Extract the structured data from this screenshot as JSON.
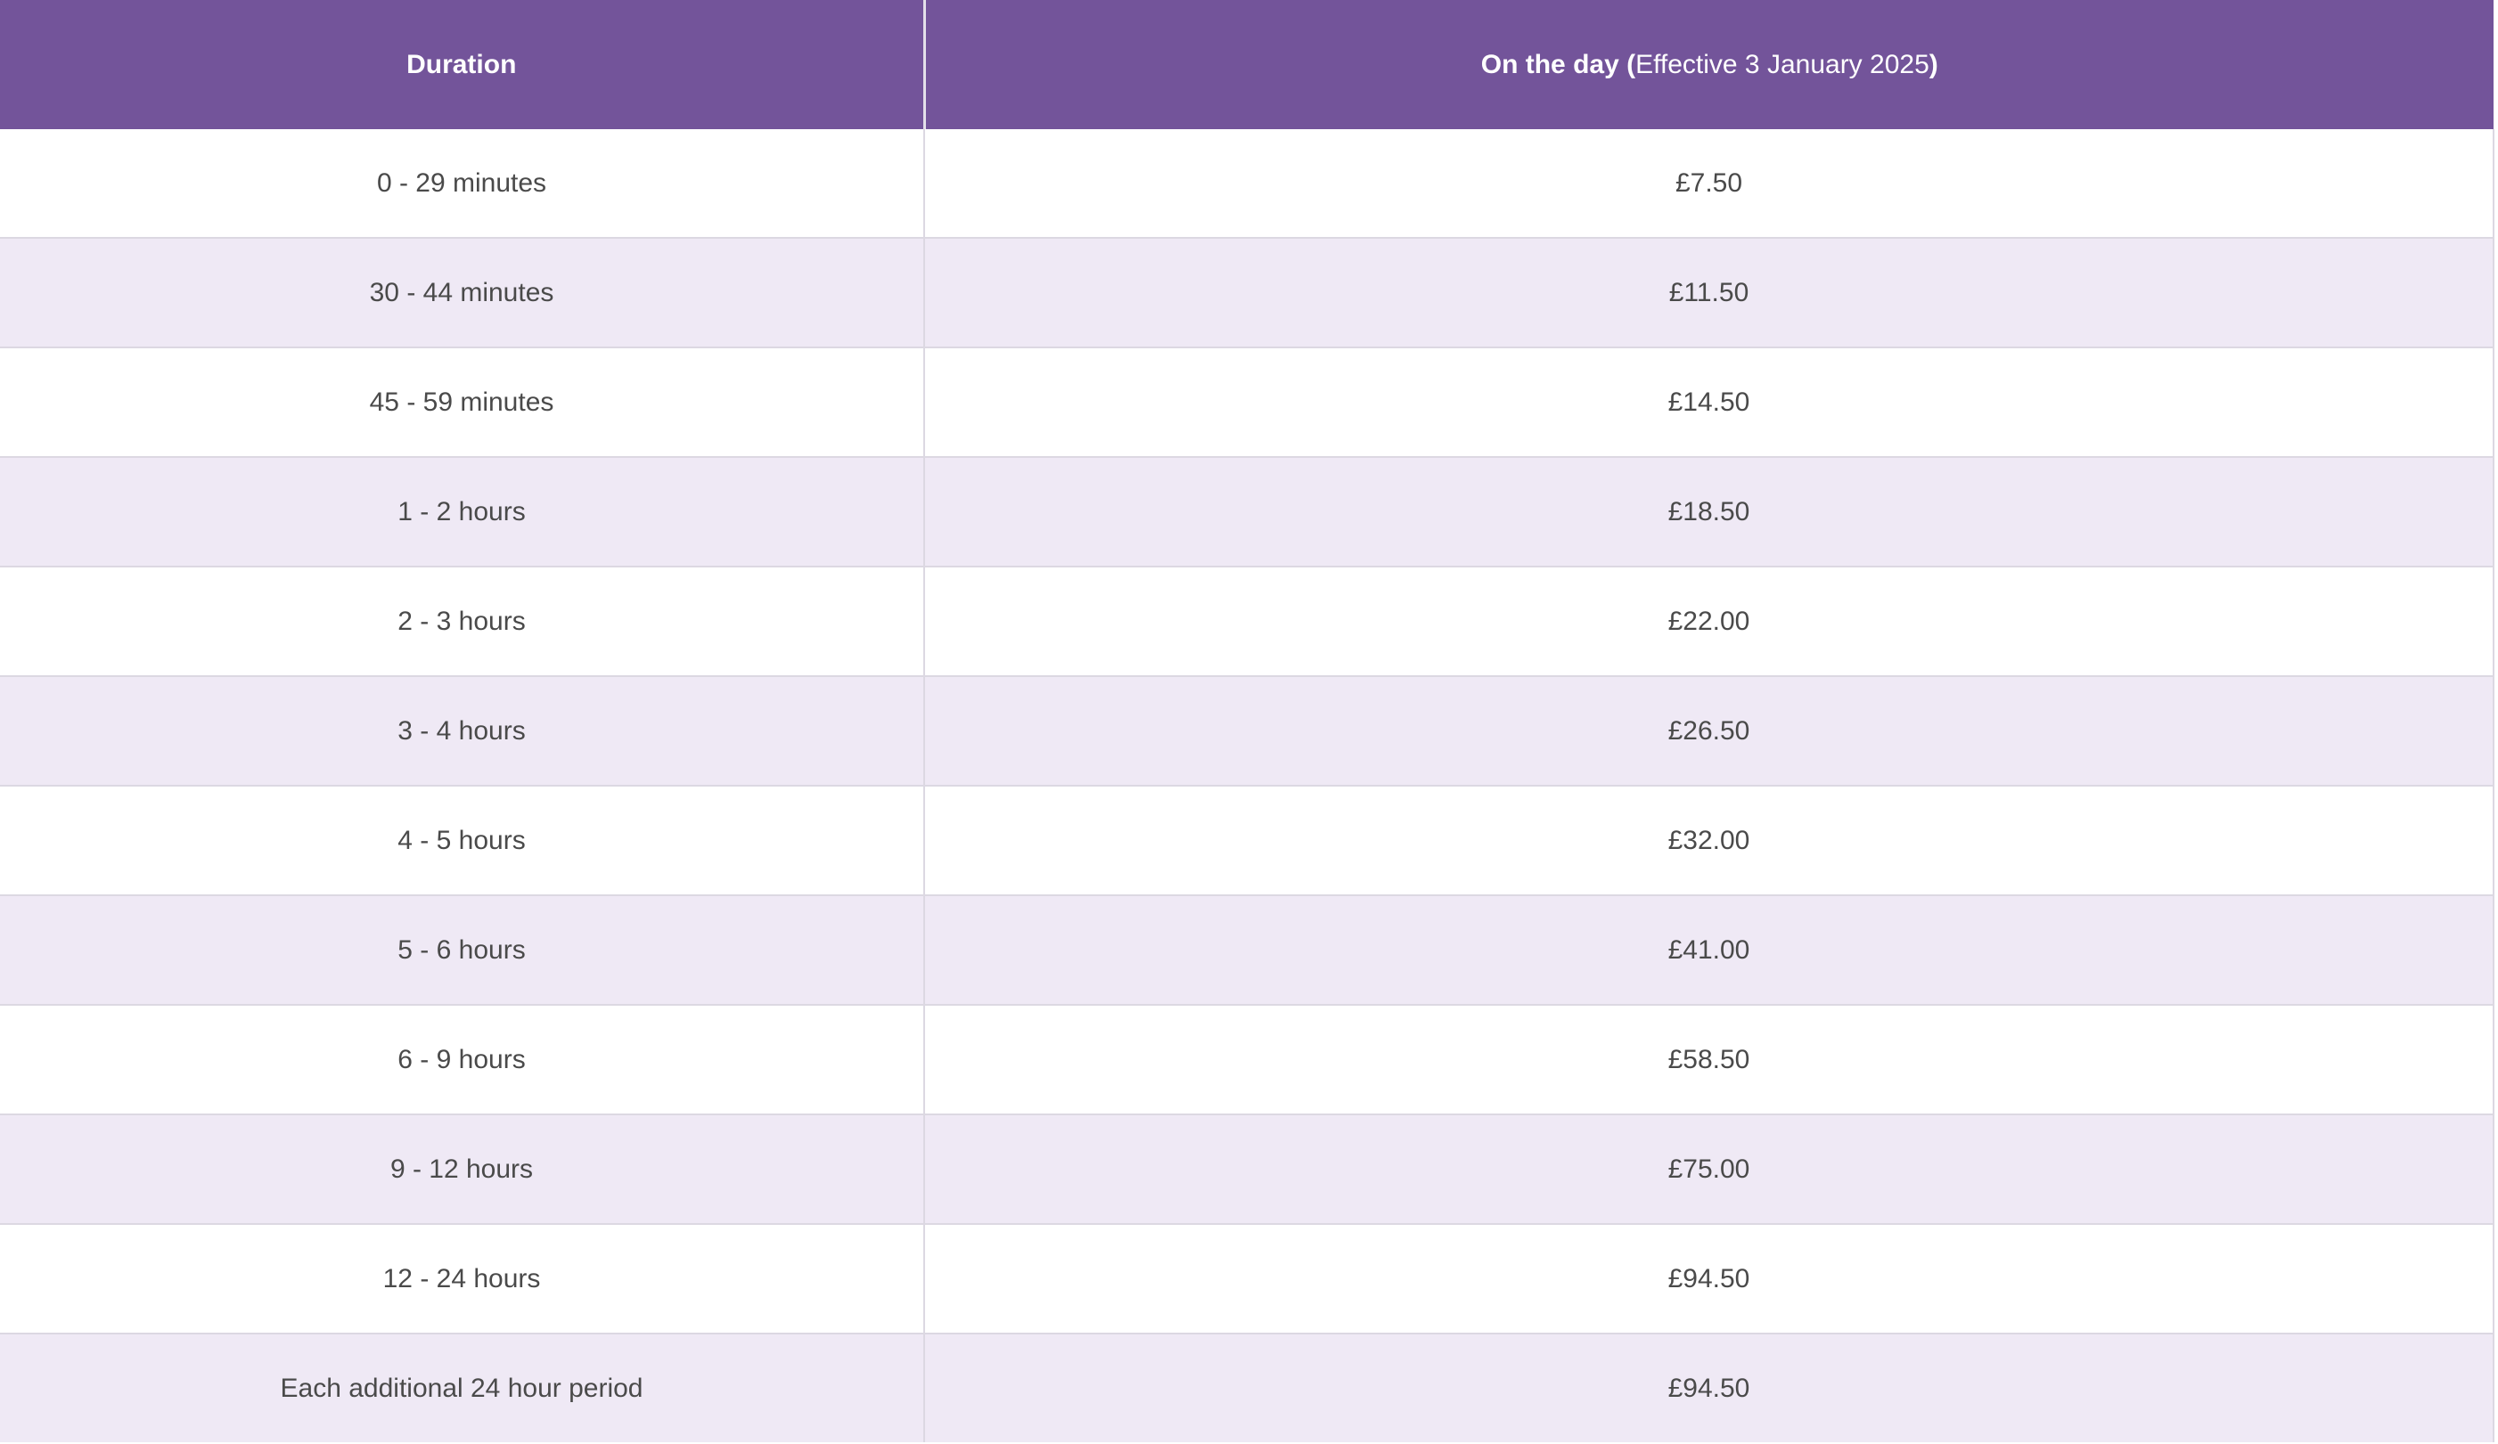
{
  "table": {
    "header": {
      "duration": "Duration",
      "price_bold_prefix": "On the day (",
      "price_note": "Effective 3 January 2025",
      "price_bold_suffix": ")"
    },
    "rows": [
      {
        "duration": "0 - 29 minutes",
        "price": "£7.50"
      },
      {
        "duration": "30 - 44 minutes",
        "price": "£11.50"
      },
      {
        "duration": "45 - 59 minutes",
        "price": "£14.50"
      },
      {
        "duration": "1 - 2 hours",
        "price": "£18.50"
      },
      {
        "duration": "2 - 3 hours",
        "price": "£22.00"
      },
      {
        "duration": "3 - 4 hours",
        "price": "£26.50"
      },
      {
        "duration": "4 - 5 hours",
        "price": "£32.00"
      },
      {
        "duration": "5 - 6 hours",
        "price": "£41.00"
      },
      {
        "duration": "6 - 9 hours",
        "price": "£58.50"
      },
      {
        "duration": "9 - 12 hours",
        "price": "£75.00"
      },
      {
        "duration": "12 - 24 hours",
        "price": "£94.50"
      },
      {
        "duration": "Each additional 24 hour period",
        "price": "£94.50"
      }
    ]
  },
  "colors": {
    "header_background": "#73549a",
    "header_text": "#ffffff",
    "stripe_background": "#efe9f5",
    "body_text": "#4a4a4a"
  }
}
